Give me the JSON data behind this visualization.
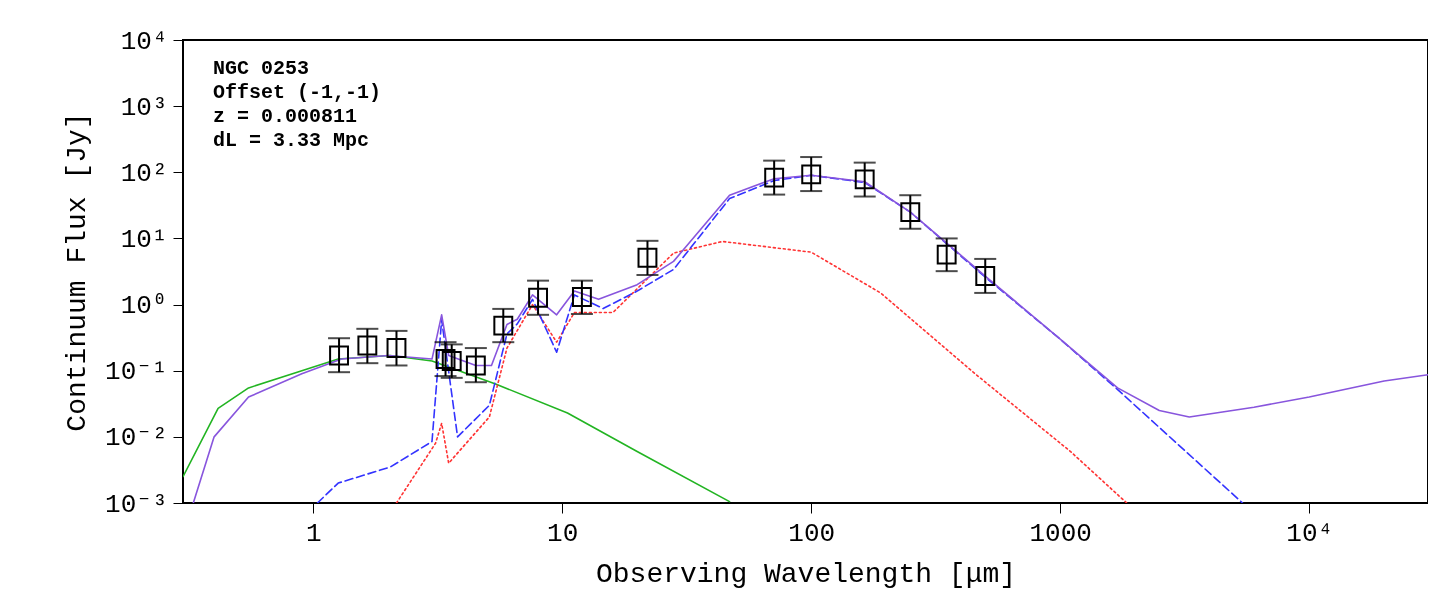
{
  "chart_data": {
    "type": "line",
    "xlabel": "Observing Wavelength [μm]",
    "ylabel": "Continuum Flux [Jy]",
    "log": "xy",
    "annotations": [
      "NGC 0253",
      "Offset (-1,-1)",
      "z = 0.000811",
      "dL = 3.33 Mpc"
    ],
    "xlim": [
      0.3,
      30000
    ],
    "xticks": [
      1,
      10,
      100,
      1000,
      {
        "value": 10000,
        "label": "10⁴"
      }
    ],
    "ylim": [
      0.001,
      10000
    ],
    "yticks": [
      {
        "value": 0.001,
        "label": "10⁻³"
      },
      {
        "value": 0.01,
        "label": "10⁻²"
      },
      {
        "value": 0.1,
        "label": "10⁻¹"
      },
      {
        "value": 1,
        "label": "10⁰"
      },
      {
        "value": 10,
        "label": "10¹"
      },
      {
        "value": 100,
        "label": "10²"
      },
      {
        "value": 1000,
        "label": "10³"
      },
      {
        "value": 10000,
        "label": "10⁴"
      }
    ],
    "series": [
      {
        "color": "#22b422",
        "line_style": "solid",
        "x": [
          0.3,
          0.415,
          0.55,
          0.9,
          1.26,
          2.04,
          3.0,
          5.4,
          10.5,
          20,
          47
        ],
        "values": [
          0.0025,
          0.027,
          0.055,
          0.1,
          0.15,
          0.17,
          0.14,
          0.063,
          0.023,
          0.006,
          0.00105
        ]
      },
      {
        "color": "#ff3333",
        "line_style": "dotted",
        "x": [
          2.16,
          3.1,
          3.28,
          3.5,
          5.1,
          6.0,
          7.6,
          9.5,
          11.2,
          16,
          28,
          44,
          100,
          190,
          460,
          1100,
          1850
        ],
        "values": [
          0.001,
          0.008,
          0.016,
          0.004,
          0.02,
          0.22,
          1.0,
          0.27,
          0.76,
          0.76,
          6,
          9,
          6.2,
          1.5,
          0.087,
          0.006,
          0.001
        ]
      },
      {
        "color": "#3333ff",
        "line_style": "dashed",
        "x": [
          1.04,
          1.26,
          2.04,
          3.0,
          3.28,
          3.8,
          5.1,
          6.0,
          6.6,
          7.6,
          9.5,
          11.2,
          14.6,
          20,
          28,
          47,
          71,
          100,
          164,
          250,
          500,
          1000,
          1680,
          5400
        ],
        "values": [
          0.001,
          0.002,
          0.0035,
          0.0085,
          0.59,
          0.01,
          0.03,
          0.36,
          0.51,
          1.2,
          0.19,
          1.4,
          0.87,
          1.6,
          3.4,
          40,
          75,
          90,
          70,
          25,
          2.6,
          0.3,
          0.054,
          0.001
        ]
      },
      {
        "color": "#8855dd",
        "line_style": "solid",
        "x": [
          0.33,
          0.4,
          0.55,
          0.9,
          1.3,
          2,
          3.0,
          3.28,
          3.5,
          4.5,
          5.2,
          6.0,
          6.6,
          7.6,
          9.5,
          11.2,
          14,
          20,
          28,
          47,
          71,
          100,
          164,
          250,
          500,
          1000,
          1700,
          2500,
          3300,
          6000,
          10000,
          20000,
          30000
        ],
        "values": [
          0.001,
          0.01,
          0.04,
          0.09,
          0.15,
          0.17,
          0.15,
          0.7,
          0.17,
          0.12,
          0.12,
          0.5,
          0.6,
          1.4,
          0.7,
          1.6,
          1.2,
          2.0,
          4.5,
          45,
          80,
          90,
          72,
          25,
          2.7,
          0.3,
          0.055,
          0.025,
          0.02,
          0.028,
          0.04,
          0.07,
          0.087
        ]
      },
      {
        "type": "scatter",
        "color": "#000000",
        "marker": "square",
        "x": [
          1.27,
          1.65,
          2.16,
          3.4,
          3.6,
          4.5,
          5.8,
          8.0,
          12,
          22,
          71,
          100,
          164,
          250,
          350,
          500
        ],
        "values": [
          0.17,
          0.24,
          0.22,
          0.15,
          0.14,
          0.12,
          0.48,
          1.27,
          1.3,
          5.1,
          83,
          93,
          78,
          25,
          5.7,
          2.7
        ],
        "errors": [
          [
            0.095,
            0.31
          ],
          [
            0.13,
            0.43
          ],
          [
            0.12,
            0.4
          ],
          [
            0.083,
            0.27
          ],
          [
            0.078,
            0.25
          ],
          [
            0.067,
            0.22
          ],
          [
            0.27,
            0.86
          ],
          [
            0.7,
            2.3
          ],
          [
            0.72,
            2.3
          ],
          [
            2.8,
            9.2
          ],
          [
            46,
            150
          ],
          [
            52,
            170
          ],
          [
            43,
            140
          ],
          [
            14,
            45
          ],
          [
            3.2,
            10
          ],
          [
            1.5,
            4.9
          ]
        ]
      }
    ]
  }
}
